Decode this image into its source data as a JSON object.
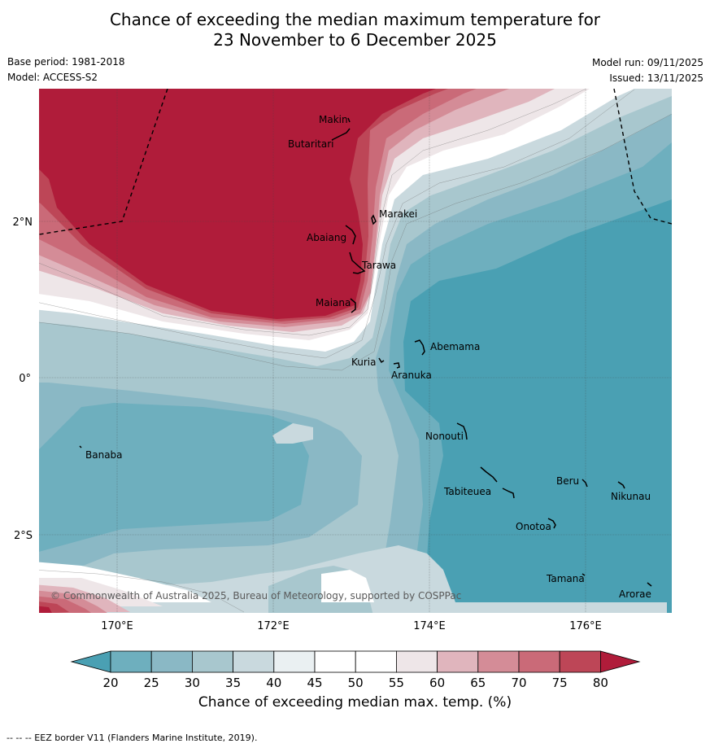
{
  "title": {
    "line1": "Chance of exceeding the median maximum temperature for",
    "line2": "23 November to 6 December 2025"
  },
  "meta": {
    "base_period": "Base period: 1981-2018",
    "model": "Model: ACCESS-S2",
    "model_run": "Model run: 09/11/2025",
    "issued": "Issued: 13/11/2025"
  },
  "map": {
    "lon_ticks": [
      "170°E",
      "172°E",
      "174°E",
      "176°E"
    ],
    "lat_ticks": [
      "2°N",
      "0°",
      "2°S"
    ],
    "places": [
      "Makin",
      "Butaritari",
      "Marakei",
      "Abaiang",
      "Tarawa",
      "Maiana",
      "Abemama",
      "Kuria",
      "Aranuka",
      "Banaba",
      "Nonouti",
      "Beru",
      "Nikunau",
      "Tabiteuea",
      "Onotoa",
      "Tamana",
      "Arorae"
    ],
    "copyright": "© Commonwealth of Australia 2025, Bureau of Meteorology, supported by COSPPac"
  },
  "colorbar": {
    "ticks": [
      "20",
      "25",
      "30",
      "35",
      "40",
      "45",
      "50",
      "55",
      "60",
      "65",
      "70",
      "75",
      "80"
    ],
    "colors": [
      "#4aa0b3",
      "#6eafbe",
      "#8ab8c5",
      "#a8c7ce",
      "#c9d9de",
      "#eaf0f2",
      "#ffffff",
      "#ffffff",
      "#eee6e8",
      "#e0b5bd",
      "#d48c97",
      "#ca6a78",
      "#bd4657",
      "#b01c3a"
    ],
    "label": "Chance of exceeding median max. temp. (%)"
  },
  "footer": "-- -- -- EEZ border V11 (Flanders Marine Institute, 2019)."
}
